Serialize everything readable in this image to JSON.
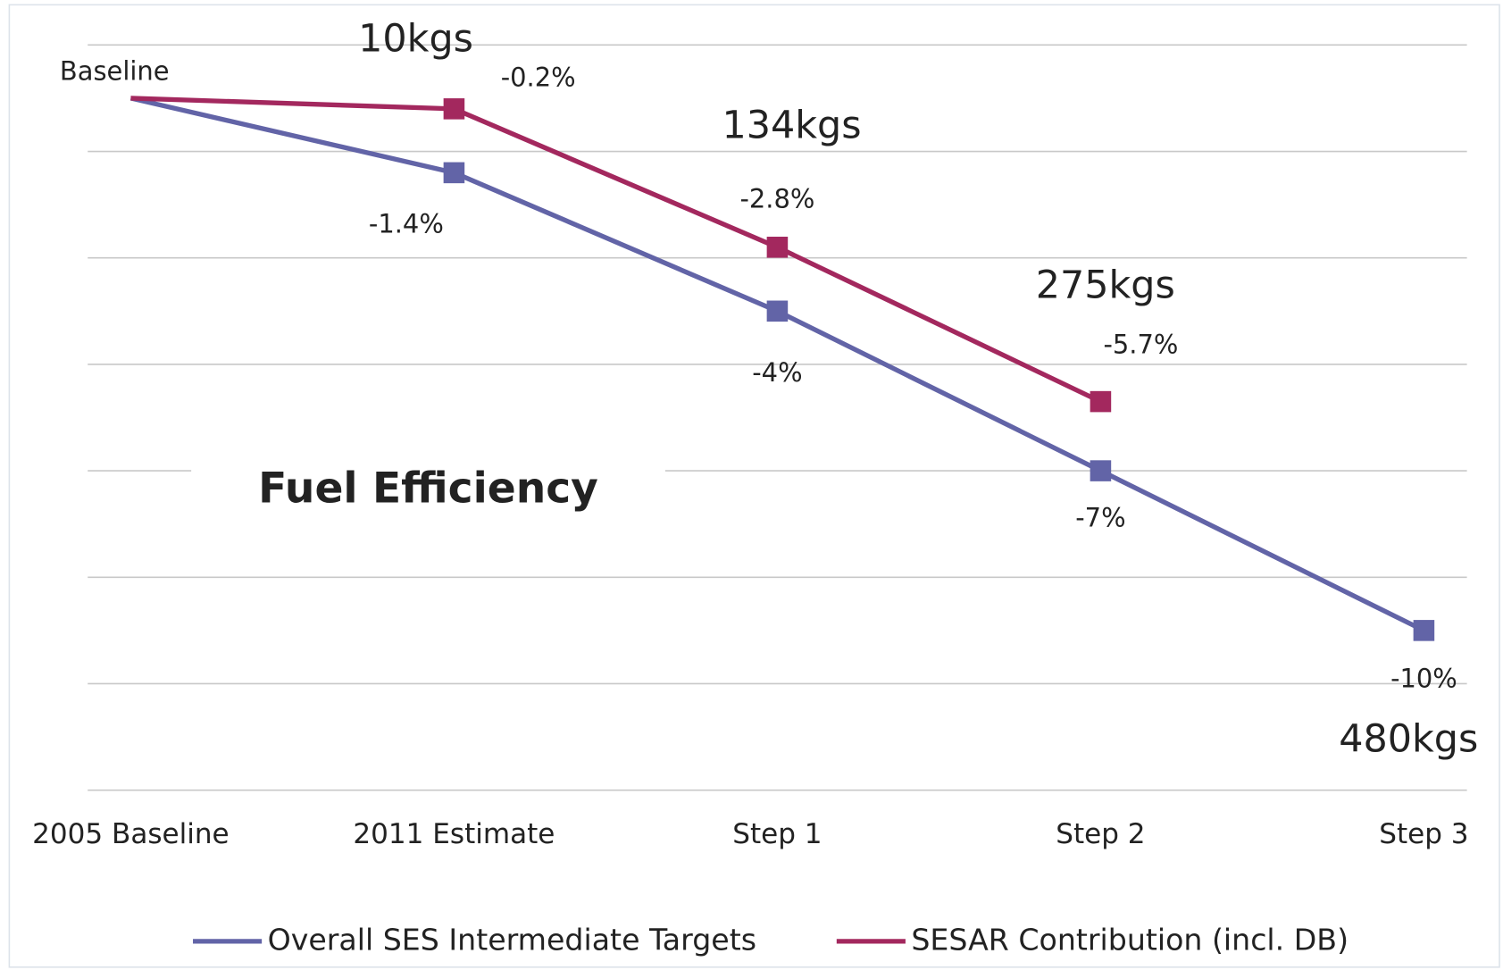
{
  "chart_data": {
    "type": "line",
    "title": "Fuel Efficiency",
    "annotation": "Baseline",
    "categories": [
      "2005 Baseline",
      "2011 Estimate",
      "Step 1",
      "Step 2",
      "Step 3"
    ],
    "series": [
      {
        "name": "Overall SES Intermediate Targets",
        "color": "#6264a7",
        "values": [
          0,
          -1.4,
          -4,
          -7,
          -10
        ],
        "value_labels": [
          null,
          "-1.4%",
          "-4%",
          "-7%",
          "-10%"
        ],
        "kg_labels": [
          null,
          null,
          null,
          null,
          "480kgs"
        ],
        "kg_color": "#6f8fcf"
      },
      {
        "name": "SESAR Contribution (incl. DB)",
        "color": "#a3285e",
        "values": [
          0,
          -0.2,
          -2.8,
          -5.7,
          null
        ],
        "value_labels": [
          null,
          "-0.2%",
          "-2.8%",
          "-5.7%",
          null
        ],
        "kg_labels": [
          null,
          "10kgs",
          "134kgs",
          "275kgs",
          null
        ],
        "kg_color": "#a51e32"
      }
    ],
    "ylim": [
      1,
      -13
    ],
    "yticks": [
      1,
      -1,
      -3,
      -5,
      -7,
      -9,
      -11,
      -13
    ],
    "grid": true,
    "legend": "bottom"
  }
}
